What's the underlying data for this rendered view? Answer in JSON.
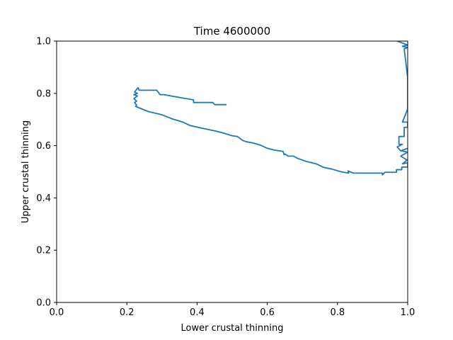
{
  "chart_data": {
    "type": "line",
    "title": "Time 4600000",
    "xlabel": "Lower crustal thinning",
    "ylabel": "Upper crustal thinning",
    "xlim": [
      0.0,
      1.0
    ],
    "ylim": [
      0.0,
      1.0
    ],
    "x_ticks": [
      "0.0",
      "0.2",
      "0.4",
      "0.6",
      "0.8",
      "1.0"
    ],
    "y_ticks": [
      "0.0",
      "0.2",
      "0.4",
      "0.6",
      "0.8",
      "1.0"
    ],
    "grid": false,
    "series": [
      {
        "color": "#1f77b4",
        "x": [
          0.484,
          0.45,
          0.445,
          0.39,
          0.39,
          0.305,
          0.295,
          0.285,
          0.235,
          0.232,
          0.222,
          0.23,
          0.22,
          0.23,
          0.22,
          0.228,
          0.222,
          0.228,
          0.225,
          0.262,
          0.3,
          0.33,
          0.36,
          0.38,
          0.42,
          0.455,
          0.47,
          0.5,
          0.515,
          0.53,
          0.54,
          0.56,
          0.58,
          0.6,
          0.62,
          0.645,
          0.648,
          0.65,
          0.66,
          0.675,
          0.685,
          0.71,
          0.74,
          0.76,
          0.785,
          0.81,
          0.832,
          0.83,
          0.845,
          0.928,
          0.928,
          0.935,
          0.935,
          0.968,
          0.968,
          0.983,
          0.983,
          1.0,
          1.0,
          0.985,
          0.998,
          0.98,
          1.0,
          0.982,
          1.0,
          0.98,
          0.97,
          0.985,
          0.975,
          0.975,
          0.99,
          0.99,
          1.0,
          1.0,
          0.985,
          1.0,
          1.0,
          1.0,
          1.0,
          1.0,
          1.0,
          1.0,
          0.99,
          1.0,
          0.985,
          1.0,
          0.97
        ],
        "y": [
          0.757,
          0.757,
          0.765,
          0.765,
          0.775,
          0.795,
          0.795,
          0.812,
          0.812,
          0.822,
          0.805,
          0.8,
          0.795,
          0.79,
          0.78,
          0.77,
          0.765,
          0.755,
          0.75,
          0.73,
          0.718,
          0.702,
          0.69,
          0.677,
          0.665,
          0.655,
          0.65,
          0.638,
          0.635,
          0.62,
          0.615,
          0.61,
          0.602,
          0.59,
          0.583,
          0.578,
          0.565,
          0.568,
          0.56,
          0.56,
          0.552,
          0.54,
          0.53,
          0.517,
          0.51,
          0.5,
          0.495,
          0.503,
          0.495,
          0.495,
          0.488,
          0.498,
          0.498,
          0.498,
          0.508,
          0.508,
          0.518,
          0.518,
          0.535,
          0.53,
          0.545,
          0.56,
          0.575,
          0.58,
          0.59,
          0.58,
          0.595,
          0.605,
          0.605,
          0.635,
          0.635,
          0.67,
          0.67,
          0.69,
          0.69,
          0.74,
          0.76,
          0.78,
          0.8,
          0.82,
          0.85,
          0.86,
          0.97,
          0.975,
          0.98,
          0.985,
          1.0
        ]
      }
    ]
  }
}
